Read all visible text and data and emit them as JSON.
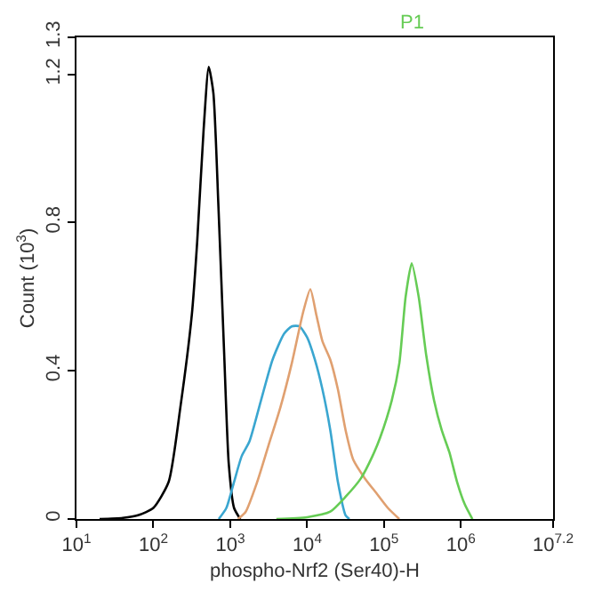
{
  "chart_data": {
    "type": "line",
    "xlabel": "phospho-Nrf2 (Ser40)-H",
    "ylabel": "Count (10$^{3}$)",
    "log": "x",
    "legend": false,
    "marker": "none",
    "line_style": "solid",
    "xlim": [
      10,
      15800000
    ],
    "xticks": [
      {
        "value": 10,
        "label": "10$^{1}$"
      },
      {
        "value": 100,
        "label": "10$^{2}$"
      },
      {
        "value": 1000,
        "label": "10$^{3}$"
      },
      {
        "value": 10000,
        "label": "10$^{4}$"
      },
      {
        "value": 100000,
        "label": "10$^{5}$"
      },
      {
        "value": 1000000,
        "label": "10$^{6}$"
      },
      {
        "value": 15800000,
        "label": "10$^{7.2}$"
      }
    ],
    "ylim": [
      0,
      1.3
    ],
    "yticks": [
      0,
      0.4,
      0.8,
      1.2,
      1.3
    ],
    "series": [
      {
        "color": "#000000",
        "x": [
          20,
          40,
          63,
          100,
          158,
          224,
          316,
          372,
          450,
          525,
          603,
          700,
          832,
          955,
          1120,
          1350
        ],
        "values": [
          0,
          0.003,
          0.01,
          0.03,
          0.1,
          0.3,
          0.55,
          0.75,
          1.05,
          1.22,
          1.15,
          0.85,
          0.45,
          0.15,
          0.03,
          0
        ]
      },
      {
        "color": "#3aa6d0",
        "x": [
          708,
          891,
          1120,
          1410,
          1780,
          2510,
          3550,
          5010,
          6310,
          7940,
          10000,
          12600,
          15800,
          20000,
          25100,
          31600,
          35500
        ],
        "values": [
          0,
          0.03,
          0.1,
          0.17,
          0.21,
          0.32,
          0.43,
          0.5,
          0.52,
          0.52,
          0.49,
          0.43,
          0.35,
          0.24,
          0.1,
          0.01,
          0
        ]
      },
      {
        "color": "#e0a070",
        "x": [
          1260,
          1590,
          2240,
          3160,
          4470,
          6310,
          8910,
          11000,
          13200,
          15800,
          20000,
          25100,
          31600,
          39800,
          56200,
          79400,
          112000,
          158000
        ],
        "values": [
          0,
          0.02,
          0.1,
          0.2,
          0.3,
          0.42,
          0.56,
          0.62,
          0.55,
          0.48,
          0.43,
          0.35,
          0.24,
          0.16,
          0.11,
          0.07,
          0.03,
          0
        ]
      },
      {
        "name": "P1",
        "color": "#66cc55",
        "x": [
          3980,
          10000,
          20000,
          31600,
          50100,
          70800,
          89100,
          126000,
          158000,
          191000,
          229000,
          282000,
          355000,
          447000,
          562000,
          708000,
          891000,
          1120000,
          1410000
        ],
        "values": [
          0,
          0.005,
          0.02,
          0.06,
          0.11,
          0.17,
          0.22,
          0.32,
          0.42,
          0.6,
          0.69,
          0.6,
          0.44,
          0.32,
          0.24,
          0.18,
          0.1,
          0.04,
          0
        ]
      }
    ]
  }
}
